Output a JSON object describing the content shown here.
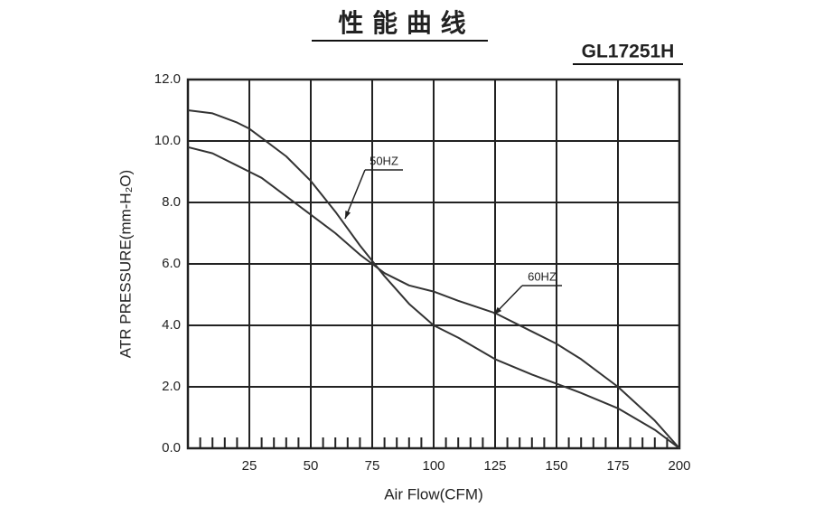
{
  "chart_data": {
    "type": "line",
    "title": "性 能 曲 线",
    "model": "GL17251H",
    "x_label": "Air Flow(CFM)",
    "y_label": "ATR PRESSURE(mm-H₂O)",
    "x": [
      0,
      10,
      20,
      25,
      30,
      40,
      50,
      60,
      70,
      75,
      80,
      90,
      100,
      110,
      125,
      140,
      150,
      160,
      175,
      190,
      200
    ],
    "series": [
      {
        "name": "50HZ",
        "color": "#333333",
        "values": [
          11.0,
          10.9,
          10.6,
          10.4,
          10.1,
          9.5,
          8.7,
          7.7,
          6.6,
          6.1,
          5.6,
          4.7,
          4.0,
          3.6,
          2.9,
          2.4,
          2.1,
          1.8,
          1.3,
          0.6,
          0
        ]
      },
      {
        "name": "60HZ",
        "color": "#333333",
        "values": [
          9.8,
          9.6,
          9.2,
          9.0,
          8.8,
          8.2,
          7.6,
          7.0,
          6.3,
          6.0,
          5.7,
          5.3,
          5.1,
          4.8,
          4.4,
          3.8,
          3.4,
          2.9,
          2.0,
          0.9,
          0
        ]
      }
    ],
    "xlim": [
      0,
      200
    ],
    "ylim": [
      0,
      12
    ],
    "xticks": [
      25,
      50,
      75,
      100,
      125,
      150,
      175,
      200
    ],
    "yticks": [
      {
        "value": 0,
        "label": "0.0"
      },
      {
        "value": 2,
        "label": "2.0"
      },
      {
        "value": 4,
        "label": "4.0"
      },
      {
        "value": 6,
        "label": "6.0"
      },
      {
        "value": 8,
        "label": "8.0"
      },
      {
        "value": 10,
        "label": "10.0"
      },
      {
        "value": 12,
        "label": "12.0"
      }
    ],
    "grid": true
  }
}
